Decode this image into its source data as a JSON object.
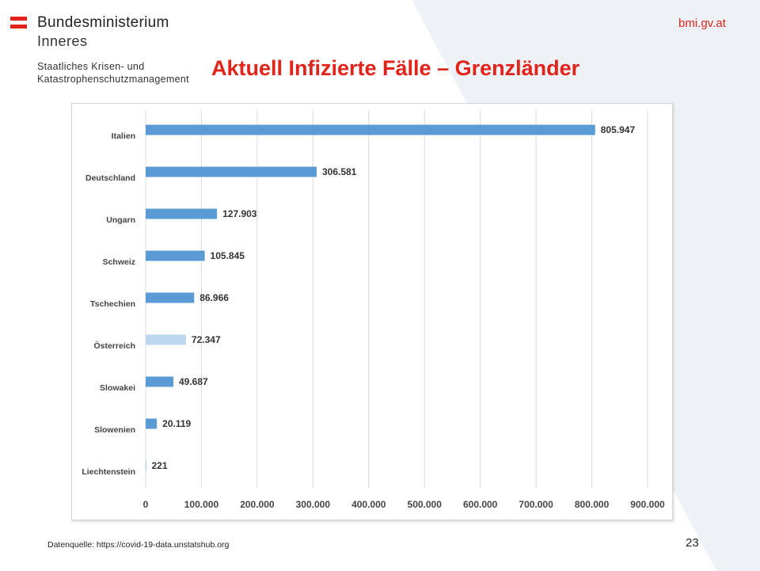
{
  "header": {
    "org_line1": "Bundesministerium",
    "org_line2": "Inneres",
    "dept_line1": "Staatliches Krisen- und",
    "dept_line2": "Katastrophenschutzmanagement",
    "site": "bmi.gv.at",
    "title": "Aktuell Infizierte Fälle – Grenzländer"
  },
  "footer": {
    "source": "Datenquelle: https://covid-19-data.unstatshub.org",
    "page_number": "23"
  },
  "colors": {
    "brand_red": "#e2231a",
    "bar": "#5b9bd5",
    "bar_highlight": "#bdd7ee",
    "background_shape": "#eef2f6"
  },
  "chart_data": {
    "type": "bar",
    "orientation": "horizontal",
    "categories": [
      "Italien",
      "Deutschland",
      "Ungarn",
      "Schweiz",
      "Tschechien",
      "Österreich",
      "Slowakei",
      "Slowenien",
      "Liechtenstein"
    ],
    "values": [
      805947,
      306581,
      127903,
      105845,
      86966,
      72347,
      49687,
      20119,
      221
    ],
    "data_labels": [
      "805.947",
      "306.581",
      "127.903",
      "105.845",
      "86.966",
      "72.347",
      "49.687",
      "20.119",
      "221"
    ],
    "highlight": "Österreich",
    "xlim": [
      0,
      900000
    ],
    "x_ticks": [
      0,
      100000,
      200000,
      300000,
      400000,
      500000,
      600000,
      700000,
      800000,
      900000
    ],
    "x_tick_labels": [
      "0",
      "100.000",
      "200.000",
      "300.000",
      "400.000",
      "500.000",
      "600.000",
      "700.000",
      "800.000",
      "900.000"
    ],
    "grid": "vertical",
    "legend": "none"
  }
}
